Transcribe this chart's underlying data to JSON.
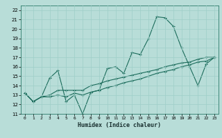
{
  "title": "",
  "xlabel": "Humidex (Indice chaleur)",
  "xlim": [
    -0.5,
    23.5
  ],
  "ylim": [
    11,
    22.5
  ],
  "xticks": [
    0,
    1,
    2,
    3,
    4,
    5,
    6,
    7,
    8,
    9,
    10,
    11,
    12,
    13,
    14,
    15,
    16,
    17,
    18,
    19,
    20,
    21,
    22,
    23
  ],
  "yticks": [
    11,
    12,
    13,
    14,
    15,
    16,
    17,
    18,
    19,
    20,
    21,
    22
  ],
  "bg_color": "#b8ddd8",
  "line_color": "#1a6b5a",
  "grid_color": "#9ecec8",
  "line1_x": [
    0,
    1,
    2,
    3,
    4,
    5,
    6,
    7,
    8,
    9,
    10,
    11,
    12,
    13,
    14,
    15,
    16,
    17,
    18,
    19,
    20,
    21,
    22,
    23
  ],
  "line1_y": [
    13.2,
    12.3,
    12.8,
    14.8,
    15.6,
    12.3,
    13.0,
    11.0,
    13.3,
    13.5,
    15.8,
    16.0,
    15.3,
    17.5,
    17.3,
    19.0,
    21.3,
    21.2,
    20.3,
    18.0,
    16.0,
    14.0,
    16.3,
    17.0
  ],
  "line2_x": [
    0,
    1,
    2,
    3,
    4,
    5,
    6,
    7,
    8,
    9,
    10,
    11,
    12,
    13,
    14,
    15,
    16,
    17,
    18,
    19,
    20,
    21,
    22,
    23
  ],
  "line2_y": [
    13.2,
    12.3,
    12.8,
    12.8,
    13.0,
    12.8,
    13.2,
    13.0,
    13.3,
    13.5,
    13.8,
    14.0,
    14.3,
    14.5,
    14.7,
    15.0,
    15.3,
    15.5,
    15.7,
    16.0,
    16.2,
    16.5,
    16.6,
    17.0
  ],
  "line3_x": [
    0,
    1,
    2,
    3,
    4,
    5,
    6,
    7,
    8,
    9,
    10,
    11,
    12,
    13,
    14,
    15,
    16,
    17,
    18,
    19,
    20,
    21,
    22,
    23
  ],
  "line3_y": [
    13.2,
    12.3,
    12.8,
    13.0,
    13.5,
    13.5,
    13.5,
    13.5,
    14.0,
    14.2,
    14.5,
    14.7,
    14.9,
    15.1,
    15.3,
    15.5,
    15.7,
    16.0,
    16.2,
    16.4,
    16.5,
    16.8,
    17.0,
    17.0
  ]
}
